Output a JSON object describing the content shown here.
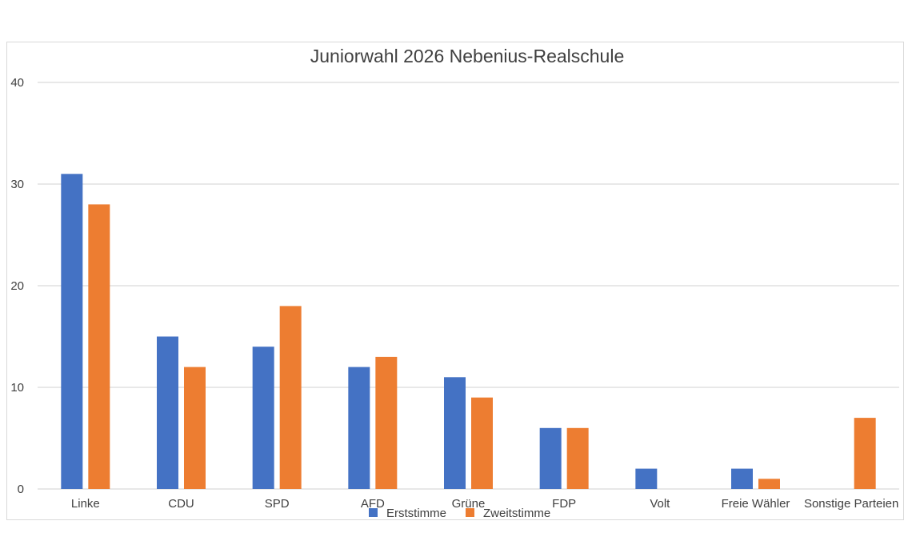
{
  "chart_data": {
    "type": "bar",
    "title": "Juniorwahl 2026 Nebenius-Realschule",
    "xlabel": "",
    "ylabel": "",
    "ylim": [
      0,
      40
    ],
    "yticks": [
      0,
      10,
      20,
      30,
      40
    ],
    "grid": true,
    "legend_position": "bottom",
    "categories": [
      "Linke",
      "CDU",
      "SPD",
      "AFD",
      "Grüne",
      "FDP",
      "Volt",
      "Freie Wähler",
      "Sonstige Parteien"
    ],
    "series": [
      {
        "name": "Erststimme",
        "color": "#4472C4",
        "values": [
          31,
          15,
          14,
          12,
          11,
          6,
          2,
          2,
          0
        ]
      },
      {
        "name": "Zweitstimme",
        "color": "#ED7D31",
        "values": [
          28,
          12,
          18,
          13,
          9,
          6,
          0,
          1,
          7
        ]
      }
    ]
  }
}
